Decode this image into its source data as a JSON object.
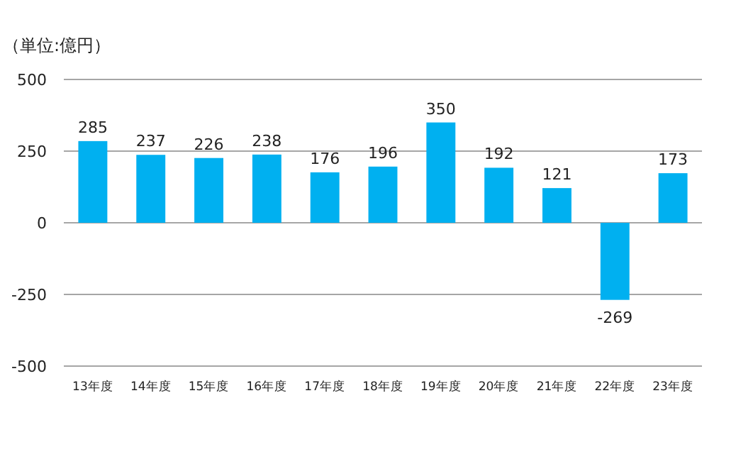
{
  "chart_data": {
    "type": "bar",
    "ylabel": "（単位:億円）",
    "categories": [
      "13年度",
      "14年度",
      "15年度",
      "16年度",
      "17年度",
      "18年度",
      "19年度",
      "20年度",
      "21年度",
      "22年度",
      "23年度"
    ],
    "values": [
      285,
      237,
      226,
      238,
      176,
      196,
      350,
      192,
      121,
      -269,
      173
    ],
    "color": "#00b0f0",
    "ylim": [
      -500,
      500
    ],
    "yticks": [
      -500,
      -250,
      0,
      250,
      500
    ],
    "grid": "y",
    "data_labels": true
  }
}
